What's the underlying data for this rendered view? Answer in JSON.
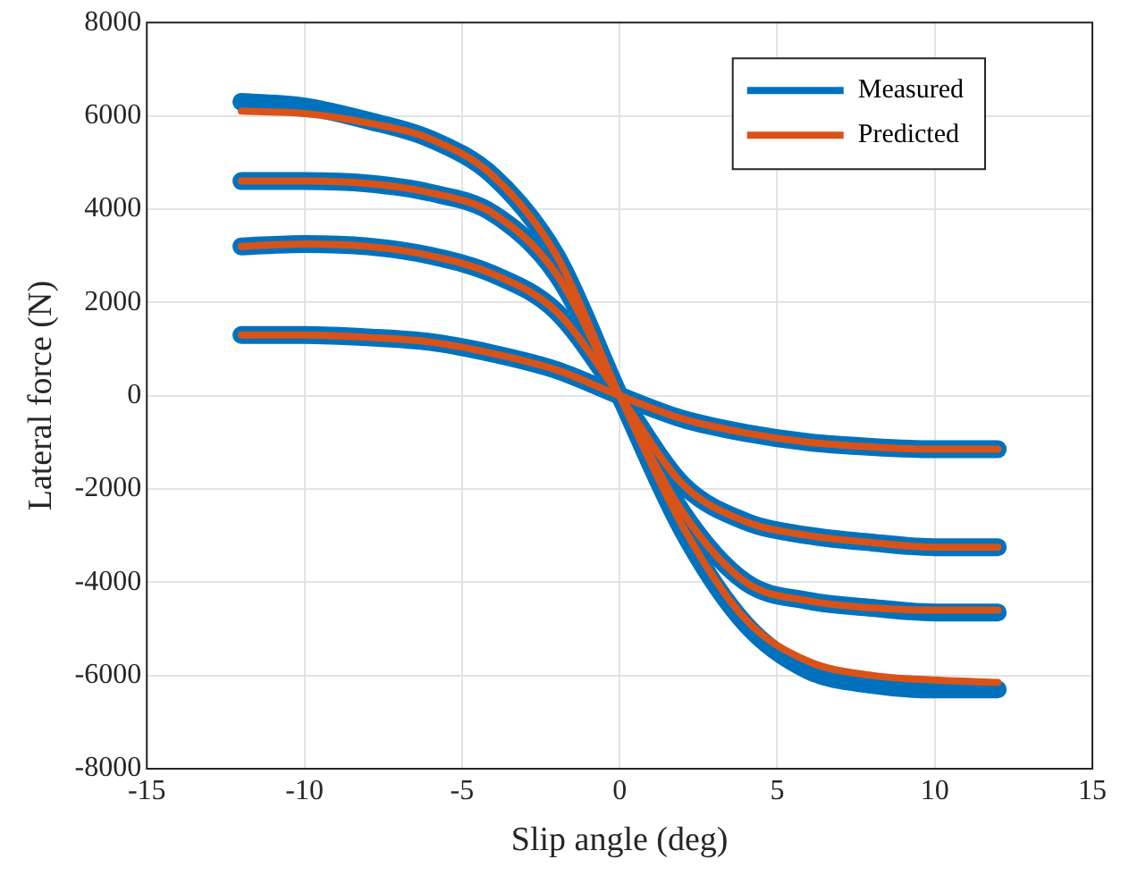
{
  "chart_data": {
    "type": "line",
    "xlabel": "Slip angle (deg)",
    "ylabel": "Lateral force (N)",
    "xlim": [
      -15,
      15
    ],
    "xticks": [
      -15,
      -10,
      -5,
      0,
      5,
      10,
      15
    ],
    "ylim": [
      -8000,
      8000
    ],
    "yticks": [
      -8000,
      -6000,
      -4000,
      -2000,
      0,
      2000,
      4000,
      6000,
      8000
    ],
    "grid": true,
    "legend": "top right",
    "marker": "none",
    "line_style": "solid",
    "series": [
      {
        "name": "Measured",
        "color": "#0072bd",
        "x": [
          -12,
          -10,
          -8,
          -6,
          -4,
          -2,
          0,
          2,
          4,
          6,
          8,
          10,
          12
        ],
        "values": [
          6300,
          6200,
          5900,
          5500,
          4700,
          3000,
          0,
          -2900,
          -4900,
          -5900,
          -6200,
          -6300,
          -6300
        ]
      },
      {
        "color": "#0072bd",
        "x": [
          -12,
          -10,
          -8,
          -6,
          -4,
          -2,
          0,
          2,
          4,
          6,
          8,
          10,
          12
        ],
        "values": [
          4600,
          4600,
          4550,
          4350,
          3900,
          2600,
          0,
          -2500,
          -4000,
          -4400,
          -4550,
          -4650,
          -4650
        ]
      },
      {
        "color": "#0072bd",
        "x": [
          -12,
          -10,
          -8,
          -6,
          -4,
          -2,
          0,
          2,
          4,
          6,
          8,
          10,
          12
        ],
        "values": [
          3200,
          3250,
          3200,
          3000,
          2600,
          1800,
          0,
          -1900,
          -2700,
          -3000,
          -3150,
          -3250,
          -3250
        ]
      },
      {
        "color": "#0072bd",
        "x": [
          -12,
          -10,
          -8,
          -6,
          -4,
          -2,
          0,
          2,
          4,
          6,
          8,
          10,
          12
        ],
        "values": [
          1300,
          1300,
          1250,
          1150,
          900,
          550,
          0,
          -500,
          -800,
          -1000,
          -1100,
          -1150,
          -1150
        ]
      },
      {
        "name": "Predicted",
        "color": "#d95319",
        "x": [
          -12,
          -10,
          -8,
          -6,
          -4,
          -2,
          0,
          2,
          4,
          6,
          8,
          10,
          12
        ],
        "values": [
          6100,
          6050,
          5850,
          5500,
          4700,
          3000,
          0,
          -2800,
          -4800,
          -5700,
          -6000,
          -6100,
          -6150
        ]
      },
      {
        "color": "#d95319",
        "x": [
          -12,
          -10,
          -8,
          -6,
          -4,
          -2,
          0,
          2,
          4,
          6,
          8,
          10,
          12
        ],
        "values": [
          4600,
          4600,
          4550,
          4350,
          3900,
          2600,
          0,
          -2500,
          -4000,
          -4400,
          -4550,
          -4600,
          -4600
        ]
      },
      {
        "color": "#d95319",
        "x": [
          -12,
          -10,
          -8,
          -6,
          -4,
          -2,
          0,
          2,
          4,
          6,
          8,
          10,
          12
        ],
        "values": [
          3200,
          3250,
          3200,
          3000,
          2600,
          1800,
          0,
          -1900,
          -2700,
          -3000,
          -3150,
          -3250,
          -3250
        ]
      },
      {
        "color": "#d95319",
        "x": [
          -12,
          -10,
          -8,
          -6,
          -4,
          -2,
          0,
          2,
          4,
          6,
          8,
          10,
          12
        ],
        "values": [
          1300,
          1300,
          1250,
          1150,
          900,
          550,
          0,
          -500,
          -800,
          -1000,
          -1100,
          -1150,
          -1150
        ]
      }
    ]
  }
}
